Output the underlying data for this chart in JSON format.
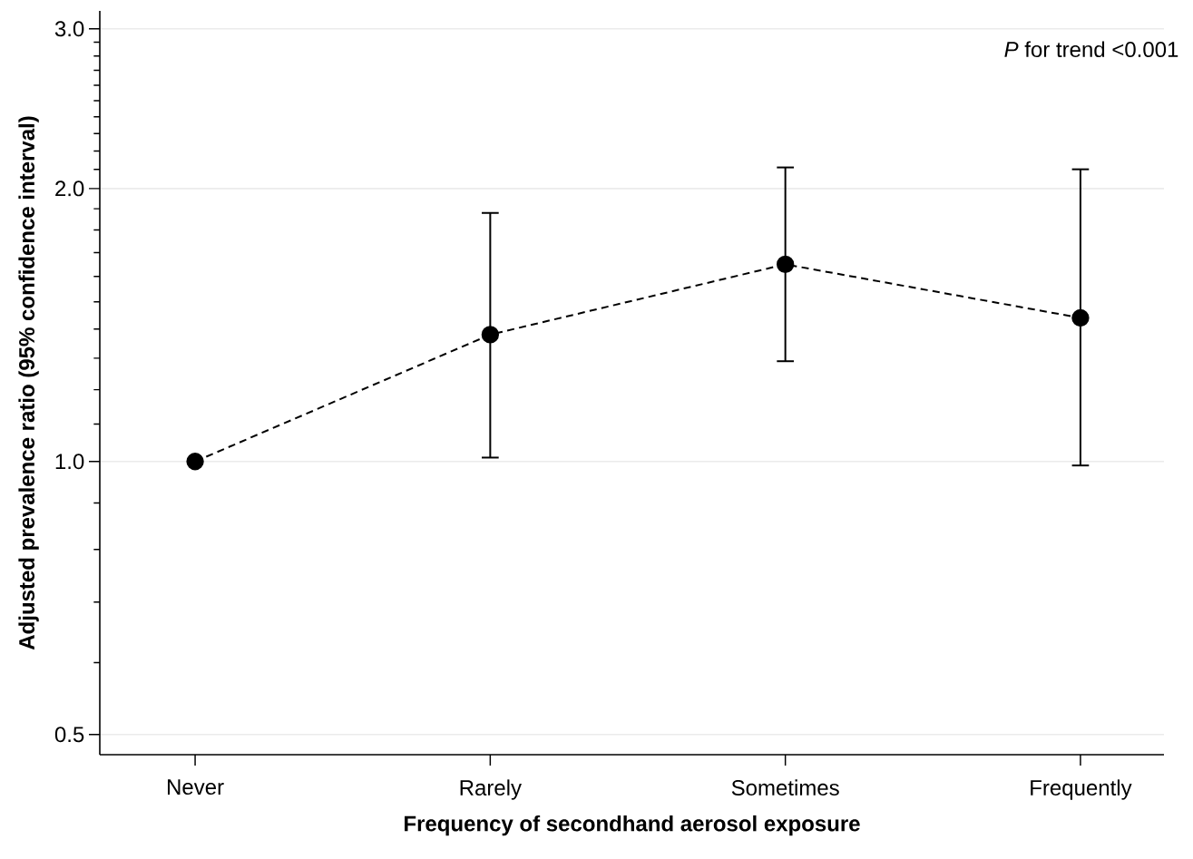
{
  "chart_data": {
    "type": "line",
    "xlabel": "Frequency of secondhand aerosol exposure",
    "ylabel": "Adjusted prevalence ratio (95% confidence interval)",
    "categories": [
      "Never",
      "Rarely",
      "Sometimes",
      "Frequently"
    ],
    "series": [
      {
        "color": "#000000",
        "values": [
          1.0,
          1.38,
          1.65,
          1.44
        ],
        "errors": [
          null,
          [
            1.01,
            1.88
          ],
          [
            1.29,
            2.11
          ],
          [
            0.99,
            2.1
          ]
        ]
      }
    ],
    "ylim": [
      0.475,
      3.14
    ],
    "yticks": [
      0.5,
      {
        "value": 0.6,
        "label": null
      },
      {
        "value": 0.7,
        "label": null
      },
      {
        "value": 0.8,
        "label": null
      },
      {
        "value": 0.9,
        "label": null
      },
      {
        "value": 1.0,
        "label": "1.0"
      },
      {
        "value": 1.1,
        "label": null
      },
      {
        "value": 1.2,
        "label": null
      },
      {
        "value": 1.3,
        "label": null
      },
      {
        "value": 1.4,
        "label": null
      },
      {
        "value": 1.5,
        "label": null
      },
      {
        "value": 1.6,
        "label": null
      },
      {
        "value": 1.7,
        "label": null
      },
      {
        "value": 1.8,
        "label": null
      },
      {
        "value": 1.9,
        "label": null
      },
      {
        "value": 2.0,
        "label": "2.0"
      },
      {
        "value": 2.1,
        "label": null
      },
      {
        "value": 2.2,
        "label": null
      },
      {
        "value": 2.3,
        "label": null
      },
      {
        "value": 2.4,
        "label": null
      },
      {
        "value": 2.5,
        "label": null
      },
      {
        "value": 2.6,
        "label": null
      },
      {
        "value": 2.7,
        "label": null
      },
      {
        "value": 2.8,
        "label": null
      },
      {
        "value": 2.9,
        "label": null
      },
      {
        "value": 3.0,
        "label": "3.0"
      }
    ],
    "log": true,
    "grid": "y",
    "marker": "circle",
    "line_style": "dashed",
    "annotations": [
      "*P* for trend <0.001"
    ]
  }
}
